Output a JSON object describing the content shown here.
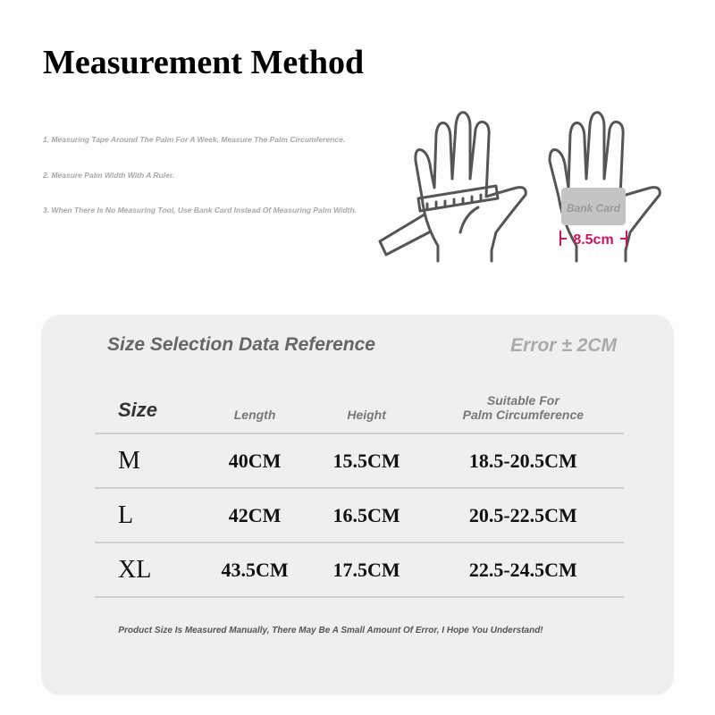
{
  "title": "Measurement Method",
  "steps": [
    "1. Measuring Tape Around The Palm For A Week, Measure The Palm Circumference.",
    "2. Measure Palm Width With A Ruler.",
    "3. When There Is No Measuring Tool, Use Bank Card Instead Of Measuring Palm Width."
  ],
  "illustration": {
    "card_label": "Bank Card",
    "width_label": "8.5cm",
    "accent": "#c8175d"
  },
  "panel": {
    "title": "Size Selection Data Reference",
    "error": "Error ± 2CM",
    "headers": {
      "size": "Size",
      "length": "Length",
      "height": "Height",
      "palm_1": "Suitable For",
      "palm_2": "Palm Circumference"
    },
    "rows": [
      {
        "size": "M",
        "length": "40CM",
        "height": "15.5CM",
        "palm": "18.5-20.5CM"
      },
      {
        "size": "L",
        "length": "42CM",
        "height": "16.5CM",
        "palm": "20.5-22.5CM"
      },
      {
        "size": "XL",
        "length": "43.5CM",
        "height": "17.5CM",
        "palm": "22.5-24.5CM"
      }
    ],
    "note": "Product Size Is Measured Manually, There May Be A Small Amount Of Error, I Hope You Understand!"
  }
}
